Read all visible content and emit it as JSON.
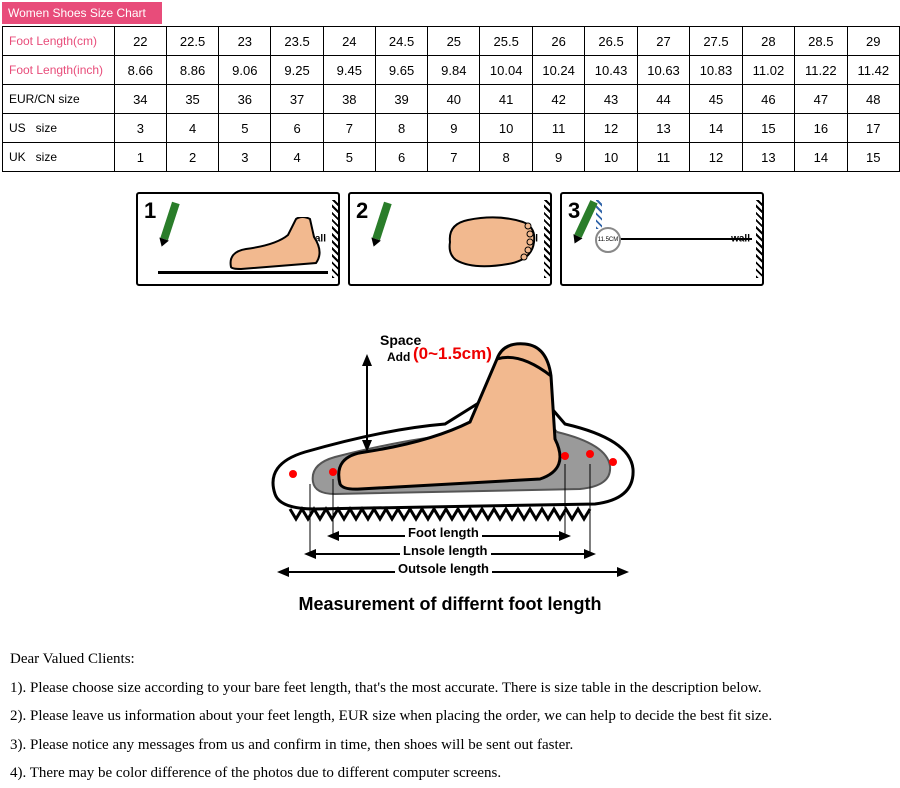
{
  "table": {
    "title": "Women Shoes Size Chart",
    "rows": [
      {
        "label": "Foot Length(cm)",
        "style": "pink",
        "cells": [
          "22",
          "22.5",
          "23",
          "23.5",
          "24",
          "24.5",
          "25",
          "25.5",
          "26",
          "26.5",
          "27",
          "27.5",
          "28",
          "28.5",
          "29"
        ]
      },
      {
        "label": "Foot Length(inch)",
        "style": "pink",
        "cells": [
          "8.66",
          "8.86",
          "9.06",
          "9.25",
          "9.45",
          "9.65",
          "9.84",
          "10.04",
          "10.24",
          "10.43",
          "10.63",
          "10.83",
          "11.02",
          "11.22",
          "11.42"
        ]
      },
      {
        "label": "EUR/CN size",
        "style": "black",
        "cells": [
          "34",
          "35",
          "36",
          "37",
          "38",
          "39",
          "40",
          "41",
          "42",
          "43",
          "44",
          "45",
          "46",
          "47",
          "48"
        ]
      },
      {
        "label": "US   size",
        "style": "black",
        "cells": [
          "3",
          "4",
          "5",
          "6",
          "7",
          "8",
          "9",
          "10",
          "11",
          "12",
          "13",
          "14",
          "15",
          "16",
          "17"
        ]
      },
      {
        "label": "UK   size",
        "style": "black",
        "cells": [
          "1",
          "2",
          "3",
          "4",
          "5",
          "6",
          "7",
          "8",
          "9",
          "10",
          "11",
          "12",
          "13",
          "14",
          "15"
        ]
      }
    ]
  },
  "steps": {
    "items": [
      {
        "num": "1",
        "wall": "wall",
        "type": "side"
      },
      {
        "num": "2",
        "wall": "wall",
        "type": "top"
      },
      {
        "num": "3",
        "wall": "wall",
        "type": "ruler",
        "small": "11.5CM"
      }
    ]
  },
  "diagram": {
    "space_label": "Space",
    "space_add": "Add",
    "space_range": "(0~1.5cm)",
    "foot_length": "Foot length",
    "insole_length": "Lnsole length",
    "outsole_length": "Outsole length",
    "title": "Measurement of differnt foot length",
    "colors": {
      "skin": "#f2b98f",
      "skin_dark": "#cc9066",
      "outline": "#000000",
      "red_dot": "#ff0000",
      "grey_insole": "#888888"
    }
  },
  "notes": {
    "heading": "Dear Valued Clients:",
    "items": [
      "1). Please choose size according to your bare feet length, that's the most accurate. There is size table in the description below.",
      "2). Please leave us information about your feet length, EUR size when placing the order, we can help to decide the best fit size.",
      "3). Please notice any messages from us and confirm in time, then shoes will be sent out faster.",
      "4). There may be color difference of the photos due to different computer screens."
    ]
  }
}
